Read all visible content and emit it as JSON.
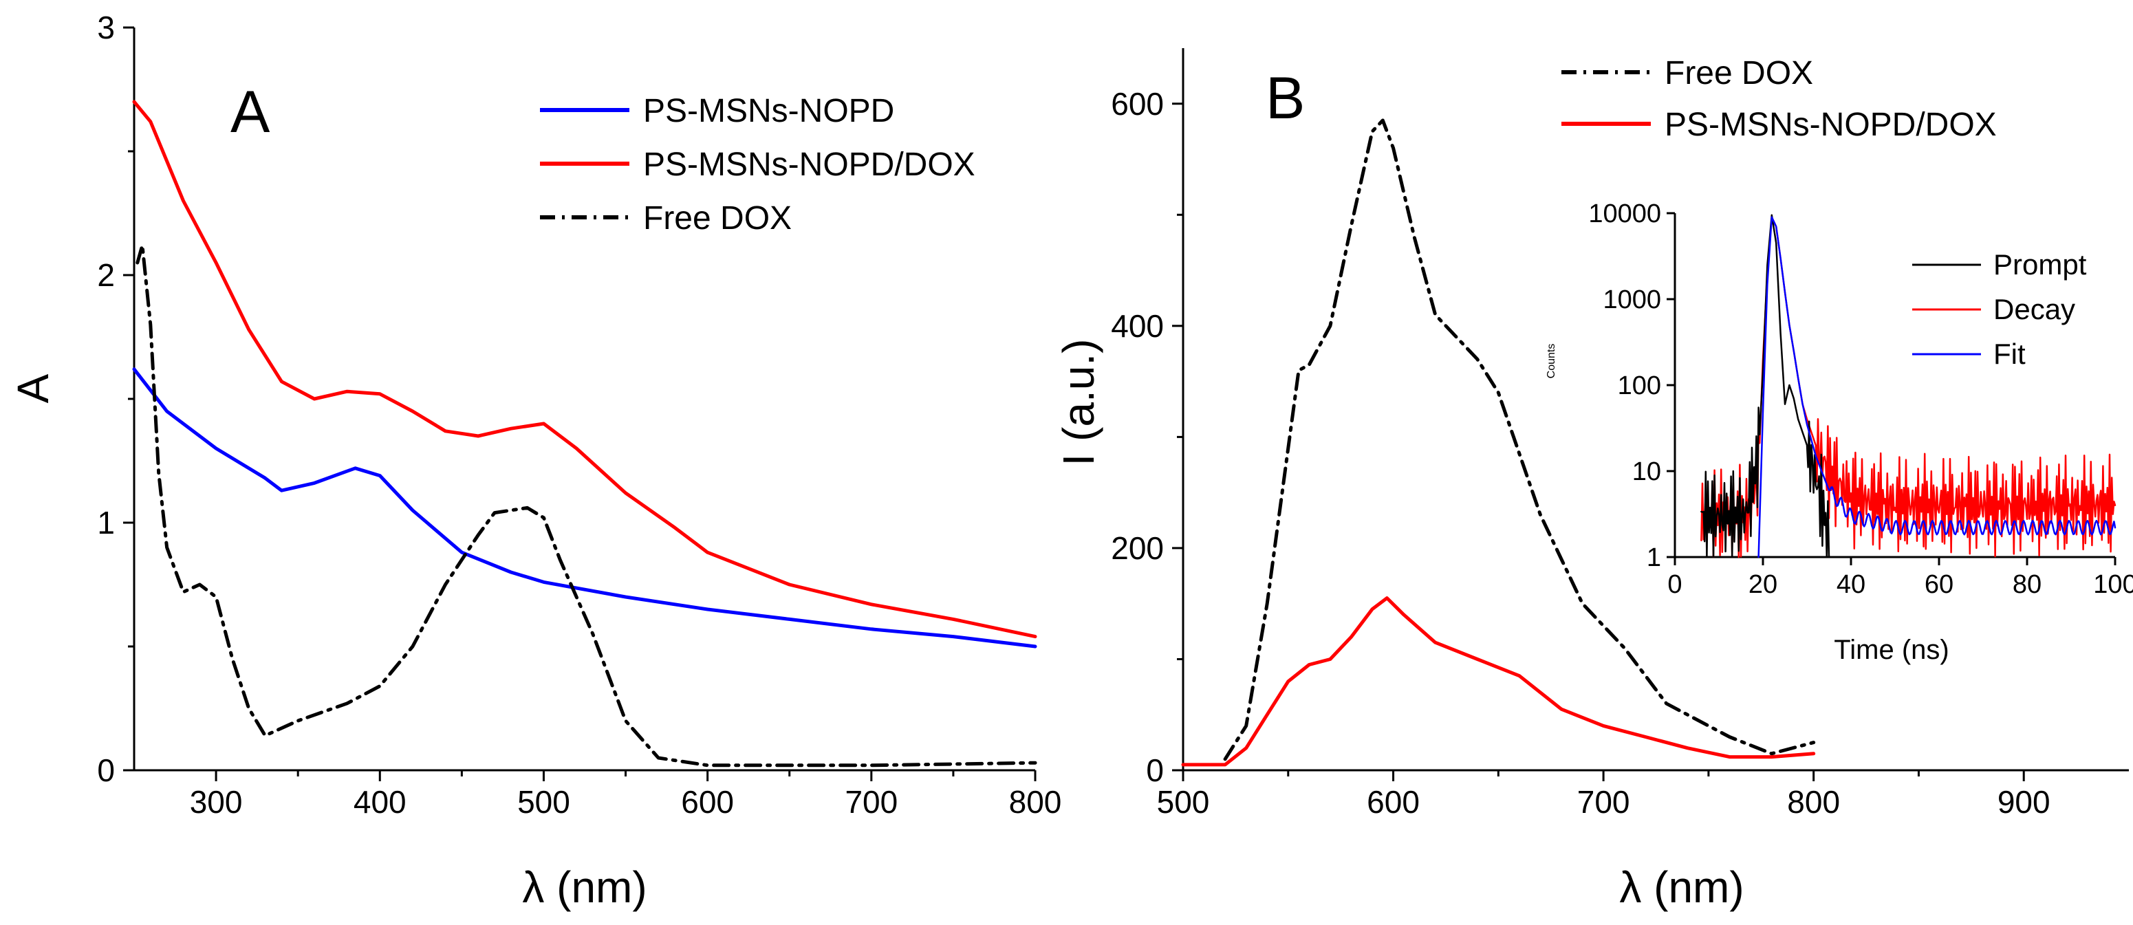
{
  "chart_data": [
    {
      "panel": "A",
      "type": "line",
      "title": "A",
      "xlabel": "λ (nm)",
      "ylabel": "A",
      "xlim": [
        250,
        800
      ],
      "ylim": [
        0,
        3
      ],
      "xticks": [
        300,
        400,
        500,
        600,
        700,
        800
      ],
      "yticks": [
        0,
        1,
        2,
        3
      ],
      "legend_position": "top-right",
      "series": [
        {
          "name": "PS-MSNs-NOPD",
          "color": "#0000ff",
          "style": "solid",
          "x": [
            250,
            270,
            300,
            330,
            340,
            360,
            385,
            400,
            420,
            450,
            480,
            500,
            550,
            600,
            650,
            700,
            750,
            800
          ],
          "y": [
            1.62,
            1.45,
            1.3,
            1.18,
            1.13,
            1.16,
            1.22,
            1.19,
            1.05,
            0.88,
            0.8,
            0.76,
            0.7,
            0.65,
            0.61,
            0.57,
            0.54,
            0.5
          ]
        },
        {
          "name": "PS-MSNs-NOPD/DOX",
          "color": "#ff0000",
          "style": "solid",
          "x": [
            250,
            260,
            280,
            300,
            320,
            340,
            360,
            380,
            400,
            420,
            440,
            460,
            480,
            500,
            520,
            550,
            580,
            600,
            650,
            700,
            750,
            800
          ],
          "y": [
            2.7,
            2.62,
            2.3,
            2.05,
            1.78,
            1.57,
            1.5,
            1.53,
            1.52,
            1.45,
            1.37,
            1.35,
            1.38,
            1.4,
            1.3,
            1.12,
            0.98,
            0.88,
            0.75,
            0.67,
            0.61,
            0.54
          ]
        },
        {
          "name": "Free DOX",
          "color": "#000000",
          "style": "dashdot",
          "x": [
            252,
            255,
            260,
            265,
            270,
            280,
            290,
            300,
            310,
            320,
            330,
            350,
            380,
            400,
            420,
            440,
            460,
            470,
            480,
            490,
            500,
            510,
            530,
            550,
            570,
            600,
            700,
            800
          ],
          "y": [
            2.05,
            2.12,
            1.8,
            1.2,
            0.9,
            0.72,
            0.75,
            0.7,
            0.45,
            0.25,
            0.14,
            0.2,
            0.27,
            0.34,
            0.5,
            0.75,
            0.95,
            1.04,
            1.05,
            1.06,
            1.02,
            0.85,
            0.55,
            0.2,
            0.05,
            0.02,
            0.02,
            0.03
          ]
        }
      ]
    },
    {
      "panel": "B",
      "type": "line",
      "title": "B",
      "xlabel": "λ (nm)",
      "ylabel": "I (a.u.)",
      "xlim": [
        500,
        950
      ],
      "ylim": [
        0,
        650
      ],
      "xticks": [
        500,
        600,
        700,
        800,
        900
      ],
      "yticks": [
        0,
        200,
        400,
        600
      ],
      "legend_position": "top-right",
      "series": [
        {
          "name": "Free DOX",
          "color": "#000000",
          "style": "dashdot",
          "x": [
            520,
            530,
            540,
            550,
            555,
            560,
            570,
            580,
            590,
            595,
            600,
            610,
            620,
            640,
            650,
            670,
            690,
            710,
            730,
            760,
            780,
            800
          ],
          "y": [
            10,
            40,
            150,
            290,
            360,
            365,
            400,
            490,
            575,
            585,
            560,
            480,
            410,
            370,
            340,
            230,
            150,
            110,
            60,
            30,
            15,
            25
          ]
        },
        {
          "name": "PS-MSNs-NOPD/DOX",
          "color": "#ff0000",
          "style": "solid",
          "x": [
            500,
            520,
            530,
            540,
            550,
            560,
            570,
            580,
            590,
            597,
            605,
            620,
            640,
            660,
            680,
            700,
            720,
            740,
            760,
            780,
            800
          ],
          "y": [
            5,
            5,
            20,
            50,
            80,
            95,
            100,
            120,
            145,
            155,
            140,
            115,
            100,
            85,
            55,
            40,
            30,
            20,
            12,
            12,
            15
          ]
        }
      ],
      "inset": {
        "type": "line",
        "xlabel": "Time (ns)",
        "ylabel": "Counts",
        "yscale": "log",
        "xlim": [
          0,
          100
        ],
        "ylim": [
          1,
          10000
        ],
        "xticks": [
          0,
          20,
          40,
          60,
          80,
          100
        ],
        "yticks": [
          1,
          10,
          100,
          1000,
          10000
        ],
        "ytick_labels": [
          "1",
          "10",
          "100",
          "1000",
          "10000"
        ],
        "legend_position": "right",
        "series": [
          {
            "name": "Prompt",
            "color": "#000000",
            "x": [
              6,
              10,
              16,
              19,
              20,
              21,
              22,
              23,
              24,
              25,
              26,
              27,
              28,
              30,
              32,
              34,
              35
            ],
            "y": [
              3,
              3,
              3,
              15,
              150,
              2500,
              9500,
              4500,
              400,
              60,
              100,
              70,
              40,
              20,
              8,
              3,
              1
            ]
          },
          {
            "name": "Decay",
            "color": "#ff0000",
            "x": [
              6,
              12,
              17,
              19,
              20,
              21,
              22,
              23,
              24,
              25,
              26,
              27,
              28,
              29,
              30,
              32,
              35,
              40,
              50,
              60,
              70,
              80,
              90,
              100
            ],
            "y": [
              3,
              3,
              3,
              10,
              200,
              2000,
              9000,
              7000,
              3000,
              1200,
              500,
              250,
              120,
              60,
              40,
              20,
              10,
              5,
              4,
              4,
              4,
              4,
              4,
              4
            ]
          },
          {
            "name": "Fit",
            "color": "#0000ff",
            "x": [
              19,
              20,
              21,
              22,
              23,
              24,
              25,
              26,
              27,
              28,
              29,
              30,
              32,
              35,
              40,
              50,
              60,
              70,
              80,
              90,
              100
            ],
            "y": [
              1,
              50,
              1500,
              9000,
              7000,
              3000,
              1200,
              500,
              250,
              120,
              60,
              35,
              15,
              6,
              3,
              2.2,
              2.2,
              2.2,
              2.2,
              2.2,
              2.2
            ]
          }
        ]
      }
    }
  ]
}
